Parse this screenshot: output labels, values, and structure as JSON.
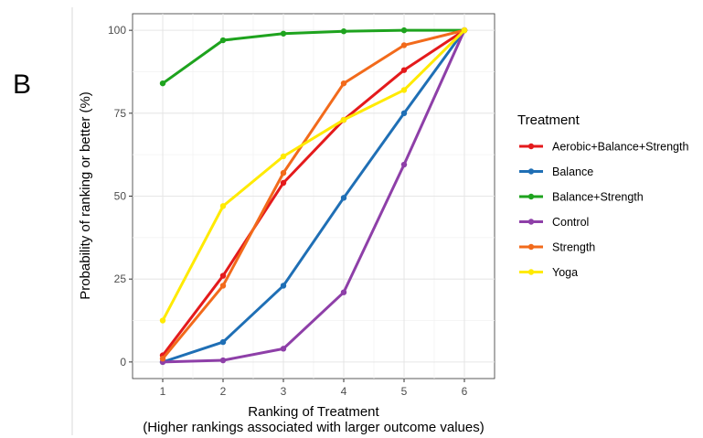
{
  "panel_label": "B",
  "chart_data": {
    "type": "line",
    "xlabel": "Ranking of Treatment",
    "xlabel_note": "(Higher rankings associated with larger outcome values)",
    "ylabel": "Probability of ranking or better (%)",
    "x": [
      1,
      2,
      3,
      4,
      5,
      6
    ],
    "x_tick_labels": [
      "1",
      "2",
      "3",
      "4",
      "5",
      "6"
    ],
    "y_ticks": [
      0,
      25,
      50,
      75,
      100
    ],
    "y_tick_labels": [
      "0",
      "25",
      "50",
      "75",
      "100"
    ],
    "xlim": [
      0.5,
      6.5
    ],
    "ylim": [
      -5,
      105
    ],
    "grid": true,
    "legend_title": "Treatment",
    "legend_position": "right",
    "series": [
      {
        "name": "Aerobic+Balance+Strength",
        "color": "#e41a1c",
        "values": [
          2,
          26,
          54,
          73,
          88,
          100
        ]
      },
      {
        "name": "Balance",
        "color": "#1f6fb5",
        "values": [
          0,
          6,
          23,
          49.5,
          75,
          100
        ]
      },
      {
        "name": "Balance+Strength",
        "color": "#1ea31e",
        "values": [
          84,
          97,
          99,
          99.7,
          100,
          100
        ]
      },
      {
        "name": "Control",
        "color": "#8e3fa8",
        "values": [
          0,
          0.5,
          4,
          21,
          59.5,
          100
        ]
      },
      {
        "name": "Strength",
        "color": "#f26a1b",
        "values": [
          1,
          23,
          57,
          84,
          95.5,
          100
        ]
      },
      {
        "name": "Yoga",
        "color": "#ffea00",
        "values": [
          12.5,
          47,
          62,
          73,
          82,
          100
        ]
      }
    ]
  }
}
